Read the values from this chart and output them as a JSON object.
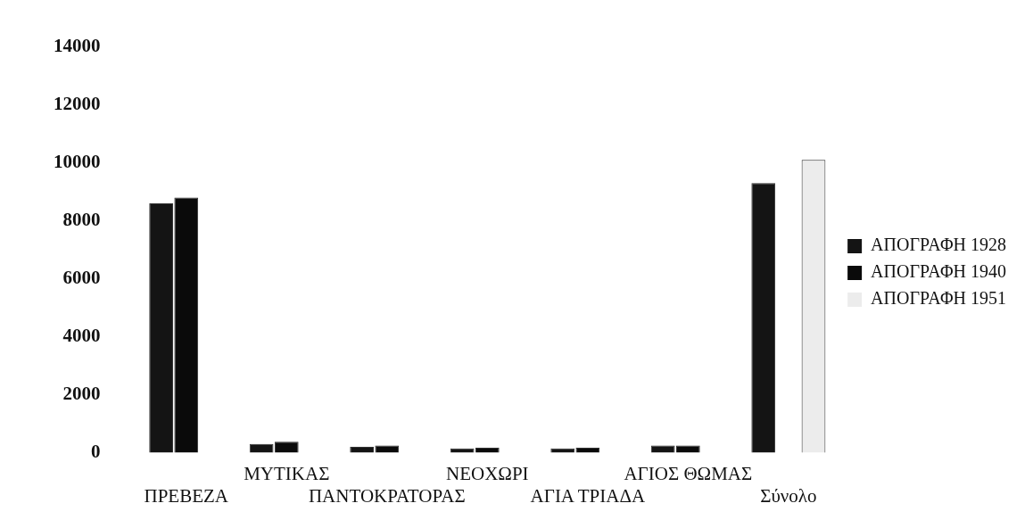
{
  "chart_data": {
    "type": "bar",
    "categories": [
      "ΠΡΕΒΕΖΑ",
      "ΜΥΤΙΚΑΣ",
      "ΠΑΝΤΟΚΡΑΤΟΡΑΣ",
      "ΝΕΟΧΩΡΙ",
      "ΑΓΙΑ ΤΡΙΑΔΑ",
      "ΑΓΙΟΣ ΘΩΜΑΣ",
      "Σύνολο"
    ],
    "series": [
      {
        "name": "ΑΠΟΓΡΑΦΗ 1928",
        "color": "#141414",
        "values": [
          8600,
          300,
          200,
          150,
          150,
          250,
          9300
        ]
      },
      {
        "name": "ΑΠΟΓΡΑΦΗ 1940",
        "color": "#0a0a0a",
        "values": [
          8800,
          380,
          250,
          170,
          170,
          250,
          null
        ]
      },
      {
        "name": "ΑΠΟΓΡΑΦΗ 1951",
        "color": "#ececec",
        "values": [
          null,
          null,
          null,
          null,
          null,
          null,
          10100
        ]
      }
    ],
    "ylim": [
      0,
      14000
    ],
    "yticks": [
      0,
      2000,
      4000,
      6000,
      8000,
      10000,
      12000,
      14000
    ],
    "grid": false,
    "legend": "right"
  }
}
